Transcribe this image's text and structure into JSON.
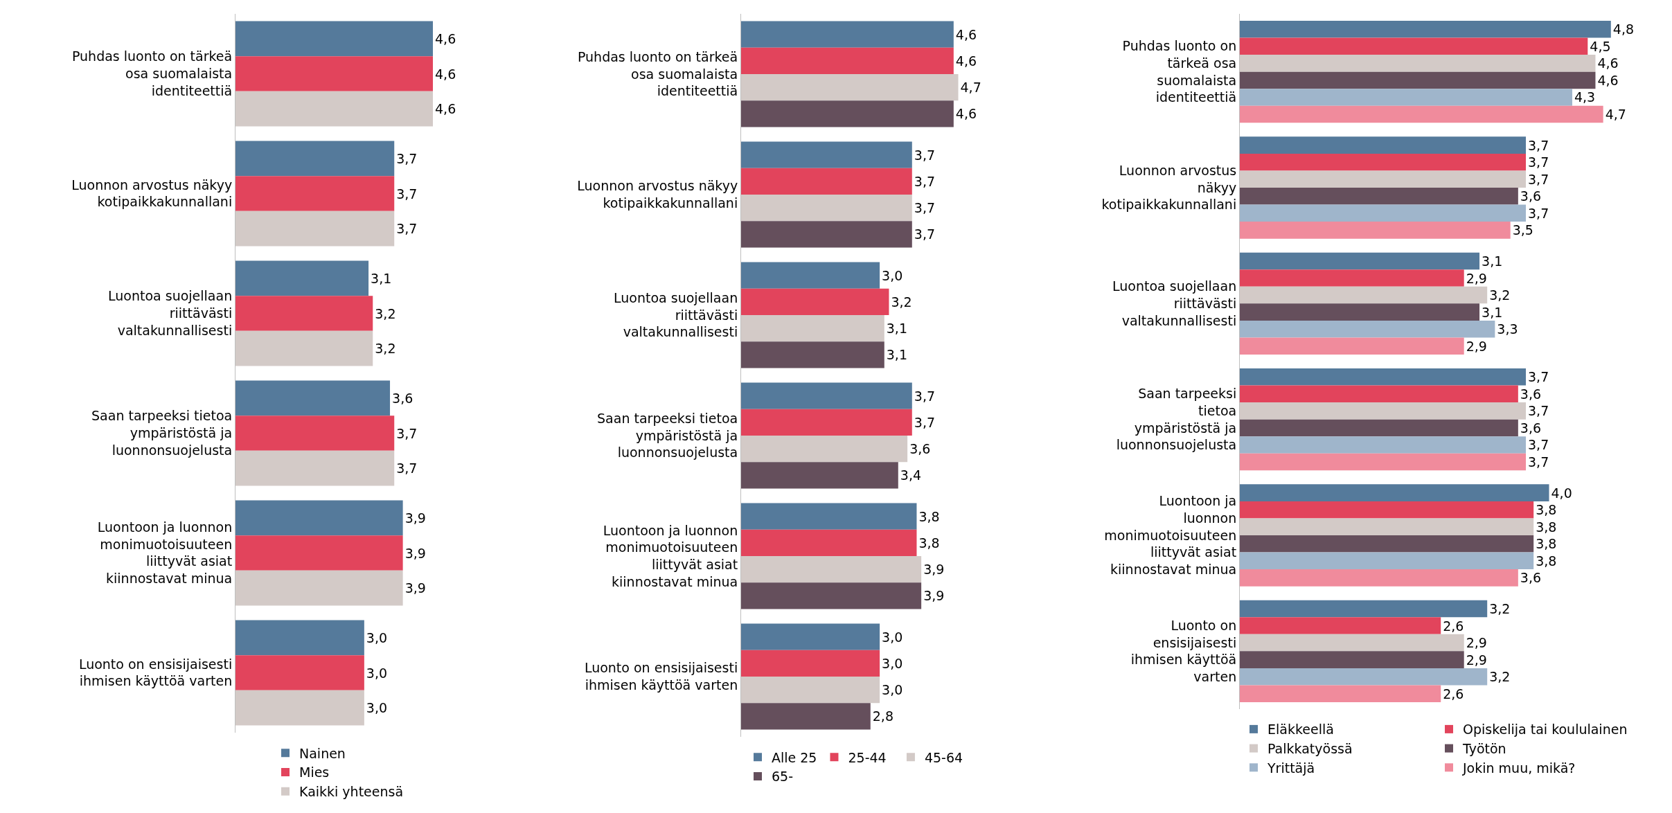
{
  "chart_data": [
    {
      "type": "bar",
      "orientation": "horizontal",
      "legend": "bottom",
      "grid": false,
      "categories": [
        "Puhdas luonto on tärkeä osa suomalaista identiteettiä",
        "Luonnon arvostus näkyy kotipaikkakunnallani",
        "Luontoa suojellaan riittävästi valtakunnallisesti",
        "Saan tarpeeksi tietoa ympäristöstä ja luonnonsuojelusta",
        "Luontoon ja luonnon monimuotoisuuteen liittyvät asiat kiinnostavat minua",
        "Luonto on ensisijaisesti ihmisen käyttöä varten"
      ],
      "series": [
        {
          "name": "Nainen",
          "color": "#557a9b",
          "values": [
            4.6,
            3.7,
            3.1,
            3.6,
            3.9,
            3.0
          ],
          "value_labels": [
            "4,6",
            "3,7",
            "3,1",
            "3,6",
            "3,9",
            "3,0"
          ]
        },
        {
          "name": "Mies",
          "color": "#e2445c",
          "values": [
            4.6,
            3.7,
            3.2,
            3.7,
            3.9,
            3.0
          ],
          "value_labels": [
            "4,6",
            "3,7",
            "3,2",
            "3,7",
            "3,9",
            "3,0"
          ]
        },
        {
          "name": "Kaikki yhteensä",
          "color": "#d3cac7",
          "values": [
            4.6,
            3.7,
            3.2,
            3.7,
            3.9,
            3.0
          ],
          "value_labels": [
            "4,6",
            "3,7",
            "3,2",
            "3,7",
            "3,9",
            "3,0"
          ]
        }
      ]
    },
    {
      "type": "bar",
      "orientation": "horizontal",
      "legend": "bottom",
      "grid": false,
      "categories": [
        "Puhdas luonto on tärkeä osa suomalaista identiteettiä",
        "Luonnon arvostus näkyy kotipaikkakunnallani",
        "Luontoa suojellaan riittävästi valtakunnallisesti",
        "Saan tarpeeksi tietoa ympäristöstä ja luonnonsuojelusta",
        "Luontoon ja luonnon monimuotoisuuteen liittyvät asiat kiinnostavat minua",
        "Luonto on ensisijaisesti ihmisen käyttöä varten"
      ],
      "series": [
        {
          "name": "Alle 25",
          "color": "#557a9b",
          "values": [
            4.6,
            3.7,
            3.0,
            3.7,
            3.8,
            3.0
          ],
          "value_labels": [
            "4,6",
            "3,7",
            "3,0",
            "3,7",
            "3,8",
            "3,0"
          ]
        },
        {
          "name": "25-44",
          "color": "#e2445c",
          "values": [
            4.6,
            3.7,
            3.2,
            3.7,
            3.8,
            3.0
          ],
          "value_labels": [
            "4,6",
            "3,7",
            "3,2",
            "3,7",
            "3,8",
            "3,0"
          ]
        },
        {
          "name": "45-64",
          "color": "#d3cac7",
          "values": [
            4.7,
            3.7,
            3.1,
            3.6,
            3.9,
            3.0
          ],
          "value_labels": [
            "4,7",
            "3,7",
            "3,1",
            "3,6",
            "3,9",
            "3,0"
          ]
        },
        {
          "name": "65-",
          "color": "#654f5c",
          "values": [
            4.6,
            3.7,
            3.1,
            3.4,
            3.9,
            2.8
          ],
          "value_labels": [
            "4,6",
            "3,7",
            "3,1",
            "3,4",
            "3,9",
            "2,8"
          ]
        }
      ]
    },
    {
      "type": "bar",
      "orientation": "horizontal",
      "legend": "bottom",
      "grid": false,
      "categories": [
        "Puhdas luonto on tärkeä osa suomalaista identiteettiä",
        "Luonnon arvostus näkyy kotipaikkakunnallani",
        "Luontoa suojellaan riittävästi valtakunnallisesti",
        "Saan tarpeeksi tietoa ympäristöstä ja luonnonsuojelusta",
        "Luontoon ja luonnon monimuotoisuuteen liittyvät asiat kiinnostavat minua",
        "Luonto on ensisijaisesti ihmisen käyttöä varten"
      ],
      "series": [
        {
          "name": "Eläkkeellä",
          "color": "#557a9b",
          "values": [
            4.8,
            3.7,
            3.1,
            3.7,
            4.0,
            3.2
          ],
          "value_labels": [
            "4,8",
            "3,7",
            "3,1",
            "3,7",
            "4,0",
            "3,2"
          ]
        },
        {
          "name": "Opiskelija tai koululainen",
          "color": "#e2445c",
          "values": [
            4.5,
            3.7,
            2.9,
            3.6,
            3.8,
            2.6
          ],
          "value_labels": [
            "4,5",
            "3,7",
            "2,9",
            "3,6",
            "3,8",
            "2,6"
          ]
        },
        {
          "name": "Palkkatyössä",
          "color": "#d3cac7",
          "values": [
            4.6,
            3.7,
            3.2,
            3.7,
            3.8,
            2.9
          ],
          "value_labels": [
            "4,6",
            "3,7",
            "3,2",
            "3,7",
            "3,8",
            "2,9"
          ]
        },
        {
          "name": "Työtön",
          "color": "#654f5c",
          "values": [
            4.6,
            3.6,
            3.1,
            3.6,
            3.8,
            2.9
          ],
          "value_labels": [
            "4,6",
            "3,6",
            "3,1",
            "3,6",
            "3,8",
            "2,9"
          ]
        },
        {
          "name": "Yrittäjä",
          "color": "#9fb5cb",
          "values": [
            4.3,
            3.7,
            3.3,
            3.7,
            3.8,
            3.2
          ],
          "value_labels": [
            "4,3",
            "3,7",
            "3,3",
            "3,7",
            "3,8",
            "3,2"
          ]
        },
        {
          "name": "Jokin muu, mikä?",
          "color": "#f08b9c",
          "values": [
            4.7,
            3.5,
            2.9,
            3.7,
            3.6,
            2.6
          ],
          "value_labels": [
            "4,7",
            "3,5",
            "2,9",
            "3,7",
            "3,6",
            "2,6"
          ]
        }
      ]
    }
  ]
}
